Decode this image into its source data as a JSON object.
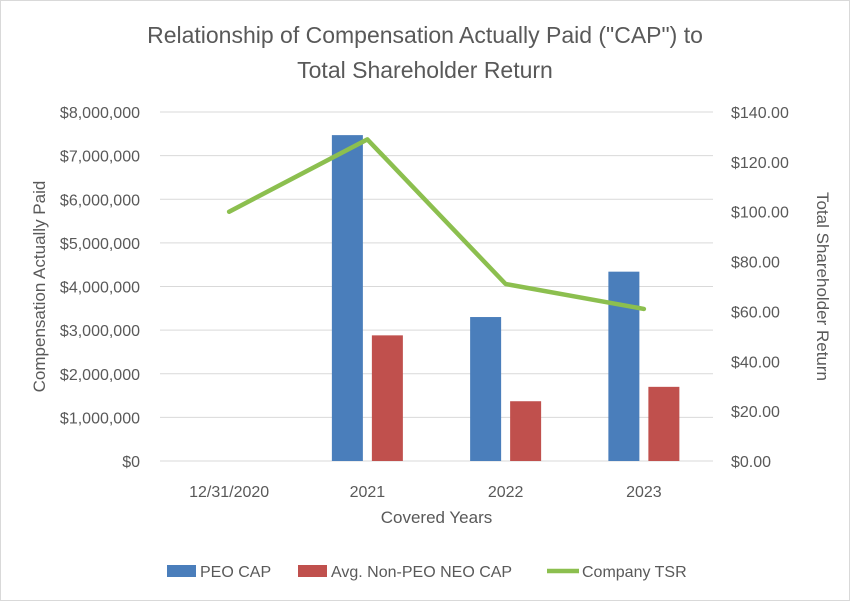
{
  "chart_data": {
    "type": "bar+line",
    "title_line1": "Relationship of Compensation Actually Paid (\"CAP\") to",
    "title_line2": "Total Shareholder Return",
    "xlabel": "Covered Years",
    "ylabel_left": "Compensation Actually Paid",
    "ylabel_right": "Total Shareholder Return",
    "categories": [
      "12/31/2020",
      "2021",
      "2022",
      "2023"
    ],
    "left_axis": {
      "min": 0,
      "max": 8000000,
      "step": 1000000,
      "ticks": [
        "$0",
        "$1,000,000",
        "$2,000,000",
        "$3,000,000",
        "$4,000,000",
        "$5,000,000",
        "$6,000,000",
        "$7,000,000",
        "$8,000,000"
      ]
    },
    "right_axis": {
      "min": 0,
      "max": 140,
      "step": 20,
      "ticks": [
        "$0.00",
        "$20.00",
        "$40.00",
        "$60.00",
        "$80.00",
        "$100.00",
        "$120.00",
        "$140.00"
      ]
    },
    "series": [
      {
        "name": "PEO CAP",
        "kind": "bar",
        "axis": "left",
        "color": "#4a7ebb",
        "values": [
          null,
          7470000,
          3300000,
          4340000
        ]
      },
      {
        "name": "Avg. Non-PEO NEO CAP",
        "kind": "bar",
        "axis": "left",
        "color": "#c0504d",
        "values": [
          null,
          2880000,
          1370000,
          1700000
        ]
      },
      {
        "name": "Company TSR",
        "kind": "line",
        "axis": "right",
        "color": "#8cbf4f",
        "values": [
          100.0,
          129.0,
          71.0,
          61.0
        ]
      }
    ],
    "grid": true,
    "legend_position": "bottom"
  }
}
